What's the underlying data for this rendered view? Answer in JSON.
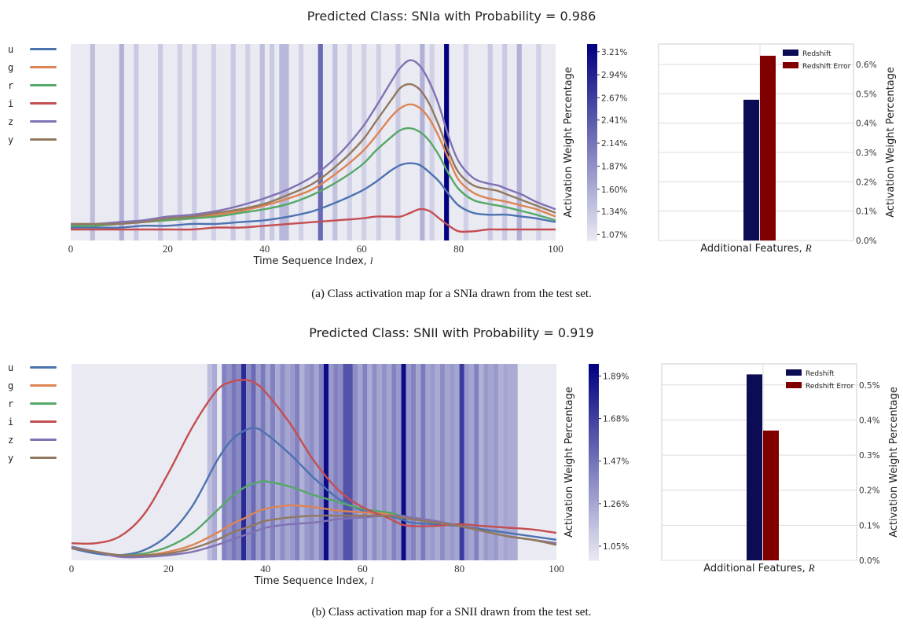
{
  "figures": [
    {
      "suptitle": "Predicted Class: SNIa with Probability = 0.986",
      "caption": "(a) Class activation map for a SNIa drawn from the test set.",
      "legend": [
        "u",
        "g",
        "r",
        "i",
        "z",
        "y"
      ],
      "colorbar_label": "Activation Weight Percentage",
      "colorbar_ticks": [
        "3.21%",
        "2.94%",
        "2.67%",
        "2.41%",
        "2.14%",
        "1.87%",
        "1.60%",
        "1.34%",
        "1.07%"
      ],
      "bar_legend": [
        "Redshift",
        "Redshift Error"
      ],
      "bar_xlabel": "Additional Features, R",
      "bar_ylabel": "Activation Weight Percentage",
      "bar_ticks": [
        "0.0%",
        "0.1%",
        "0.2%",
        "0.3%",
        "0.4%",
        "0.5%",
        "0.6%"
      ]
    },
    {
      "suptitle": "Predicted Class: SNII with Probability = 0.919",
      "caption": "(b) Class activation map for a SNII drawn from the test set.",
      "legend": [
        "u",
        "g",
        "r",
        "i",
        "z",
        "y"
      ],
      "colorbar_label": "Activation Weight Percentage",
      "colorbar_ticks": [
        "1.89%",
        "1.68%",
        "1.47%",
        "1.26%",
        "1.05%"
      ],
      "bar_legend": [
        "Redshift",
        "Redshift Error"
      ],
      "bar_xlabel": "Additional Features, R",
      "bar_ylabel": "Activation Weight Percentage",
      "bar_ticks": [
        "0.0%",
        "0.1%",
        "0.2%",
        "0.3%",
        "0.4%",
        "0.5%"
      ]
    }
  ],
  "colors": {
    "u": "#4c72b0",
    "g": "#dd8452",
    "r": "#55a868",
    "i": "#c44e52",
    "z": "#8172b3",
    "y": "#937860",
    "redshift": "#0c0c55",
    "redshift_error": "#800000",
    "cmap_max": "#000080",
    "panel_bg": "#eaeaf2"
  },
  "chart_data": [
    {
      "type": "line",
      "title": "Predicted Class: SNIa with Probability = 0.986",
      "xlabel": "Time Sequence Index, l",
      "ylabel": "",
      "xlim": [
        0,
        100
      ],
      "xticks": [
        0,
        20,
        40,
        60,
        80,
        100
      ],
      "x": [
        0,
        5,
        10,
        15,
        20,
        25,
        30,
        35,
        40,
        45,
        50,
        55,
        60,
        63,
        66,
        68,
        70,
        72,
        74,
        76,
        78,
        80,
        83,
        86,
        88,
        90,
        93,
        96,
        100
      ],
      "series": [
        {
          "name": "u",
          "values": [
            0.07,
            0.07,
            0.07,
            0.08,
            0.08,
            0.09,
            0.09,
            0.1,
            0.11,
            0.13,
            0.16,
            0.21,
            0.27,
            0.32,
            0.38,
            0.41,
            0.42,
            0.41,
            0.37,
            0.32,
            0.25,
            0.19,
            0.15,
            0.14,
            0.14,
            0.14,
            0.13,
            0.12,
            0.1
          ]
        },
        {
          "name": "g",
          "values": [
            0.08,
            0.08,
            0.09,
            0.1,
            0.11,
            0.12,
            0.14,
            0.16,
            0.19,
            0.23,
            0.28,
            0.37,
            0.48,
            0.57,
            0.67,
            0.72,
            0.74,
            0.72,
            0.66,
            0.56,
            0.44,
            0.33,
            0.26,
            0.23,
            0.22,
            0.21,
            0.19,
            0.17,
            0.13
          ]
        },
        {
          "name": "r",
          "values": [
            0.08,
            0.08,
            0.09,
            0.1,
            0.11,
            0.12,
            0.13,
            0.15,
            0.17,
            0.2,
            0.25,
            0.32,
            0.41,
            0.49,
            0.56,
            0.6,
            0.61,
            0.59,
            0.54,
            0.46,
            0.36,
            0.28,
            0.22,
            0.2,
            0.19,
            0.18,
            0.16,
            0.14,
            0.11
          ]
        },
        {
          "name": "i",
          "values": [
            0.06,
            0.06,
            0.06,
            0.06,
            0.06,
            0.06,
            0.07,
            0.07,
            0.08,
            0.09,
            0.1,
            0.11,
            0.12,
            0.13,
            0.13,
            0.13,
            0.15,
            0.17,
            0.16,
            0.12,
            0.08,
            0.05,
            0.05,
            0.06,
            0.06,
            0.06,
            0.06,
            0.06,
            0.06
          ]
        },
        {
          "name": "z",
          "values": [
            0.09,
            0.09,
            0.1,
            0.11,
            0.13,
            0.14,
            0.16,
            0.19,
            0.23,
            0.28,
            0.35,
            0.46,
            0.61,
            0.73,
            0.86,
            0.94,
            0.98,
            0.95,
            0.86,
            0.73,
            0.56,
            0.43,
            0.34,
            0.31,
            0.3,
            0.28,
            0.25,
            0.21,
            0.17
          ]
        },
        {
          "name": "y",
          "values": [
            0.09,
            0.09,
            0.09,
            0.1,
            0.12,
            0.13,
            0.15,
            0.17,
            0.2,
            0.25,
            0.31,
            0.41,
            0.54,
            0.65,
            0.76,
            0.83,
            0.85,
            0.82,
            0.74,
            0.62,
            0.48,
            0.37,
            0.3,
            0.28,
            0.27,
            0.25,
            0.22,
            0.19,
            0.15
          ]
        }
      ],
      "heat_columns": [
        {
          "x": 4,
          "w": 1,
          "v": 0.2
        },
        {
          "x": 10,
          "w": 1,
          "v": 0.25
        },
        {
          "x": 13,
          "w": 1,
          "v": 0.15
        },
        {
          "x": 18,
          "w": 1,
          "v": 0.15
        },
        {
          "x": 22,
          "w": 1,
          "v": 0.12
        },
        {
          "x": 25,
          "w": 1,
          "v": 0.14
        },
        {
          "x": 29,
          "w": 1,
          "v": 0.12
        },
        {
          "x": 33,
          "w": 1,
          "v": 0.15
        },
        {
          "x": 36,
          "w": 1,
          "v": 0.12
        },
        {
          "x": 39,
          "w": 1,
          "v": 0.2
        },
        {
          "x": 41,
          "w": 1,
          "v": 0.15
        },
        {
          "x": 43,
          "w": 2,
          "v": 0.22
        },
        {
          "x": 47,
          "w": 1,
          "v": 0.12
        },
        {
          "x": 51,
          "w": 1,
          "v": 0.55
        },
        {
          "x": 54,
          "w": 1,
          "v": 0.18
        },
        {
          "x": 57,
          "w": 1,
          "v": 0.12
        },
        {
          "x": 60,
          "w": 1,
          "v": 0.12
        },
        {
          "x": 63,
          "w": 1,
          "v": 0.12
        },
        {
          "x": 67,
          "w": 1,
          "v": 0.15
        },
        {
          "x": 72,
          "w": 1,
          "v": 0.25
        },
        {
          "x": 74,
          "w": 1,
          "v": 0.12
        },
        {
          "x": 77,
          "w": 1,
          "v": 1.0
        },
        {
          "x": 81,
          "w": 1,
          "v": 0.12
        },
        {
          "x": 86,
          "w": 1,
          "v": 0.15
        },
        {
          "x": 89,
          "w": 1,
          "v": 0.15
        },
        {
          "x": 92,
          "w": 1,
          "v": 0.25
        },
        {
          "x": 96,
          "w": 1,
          "v": 0.12
        }
      ],
      "colorbar": {
        "min": 1.0,
        "max": 3.3,
        "ticks": [
          3.21,
          2.94,
          2.67,
          2.41,
          2.14,
          1.87,
          1.6,
          1.34,
          1.07
        ]
      },
      "bars": {
        "categories": [
          "Redshift",
          "Redshift Error"
        ],
        "values": [
          0.48,
          0.63
        ],
        "ylim": [
          0,
          0.67
        ],
        "xlabel": "Additional Features, R",
        "ylabel": "Activation Weight Percentage"
      }
    },
    {
      "type": "line",
      "title": "Predicted Class: SNII with Probability = 0.919",
      "xlabel": "Time Sequence Index, l",
      "ylabel": "",
      "xlim": [
        0,
        100
      ],
      "xticks": [
        0,
        20,
        40,
        60,
        80,
        100
      ],
      "x": [
        0,
        5,
        10,
        15,
        20,
        25,
        30,
        33,
        36,
        38,
        40,
        45,
        50,
        55,
        60,
        65,
        68,
        70,
        75,
        80,
        85,
        90,
        95,
        100
      ],
      "series": [
        {
          "name": "u",
          "values": [
            0.07,
            0.04,
            0.03,
            0.06,
            0.15,
            0.32,
            0.58,
            0.7,
            0.76,
            0.77,
            0.74,
            0.62,
            0.48,
            0.36,
            0.29,
            0.26,
            0.24,
            0.22,
            0.21,
            0.2,
            0.18,
            0.16,
            0.14,
            0.12
          ]
        },
        {
          "name": "g",
          "values": [
            0.08,
            0.05,
            0.03,
            0.03,
            0.05,
            0.09,
            0.16,
            0.21,
            0.25,
            0.28,
            0.3,
            0.32,
            0.31,
            0.29,
            0.28,
            0.27,
            0.26,
            0.25,
            0.23,
            0.2,
            0.17,
            0.14,
            0.12,
            0.1
          ]
        },
        {
          "name": "r",
          "values": [
            0.08,
            0.05,
            0.03,
            0.04,
            0.08,
            0.16,
            0.29,
            0.37,
            0.43,
            0.45,
            0.46,
            0.43,
            0.38,
            0.34,
            0.3,
            0.28,
            0.26,
            0.25,
            0.23,
            0.2,
            0.17,
            0.14,
            0.12,
            0.1
          ]
        },
        {
          "name": "i",
          "values": [
            0.1,
            0.1,
            0.14,
            0.27,
            0.51,
            0.78,
            0.99,
            1.04,
            1.05,
            1.03,
            0.98,
            0.8,
            0.58,
            0.41,
            0.31,
            0.25,
            0.21,
            0.2,
            0.2,
            0.21,
            0.2,
            0.19,
            0.18,
            0.16
          ]
        },
        {
          "name": "z",
          "values": [
            0.08,
            0.05,
            0.02,
            0.02,
            0.03,
            0.05,
            0.09,
            0.12,
            0.15,
            0.17,
            0.19,
            0.21,
            0.22,
            0.24,
            0.25,
            0.26,
            0.26,
            0.25,
            0.23,
            0.2,
            0.17,
            0.14,
            0.12,
            0.1
          ]
        },
        {
          "name": "y",
          "values": [
            0.07,
            0.05,
            0.03,
            0.03,
            0.04,
            0.07,
            0.12,
            0.16,
            0.19,
            0.21,
            0.23,
            0.25,
            0.26,
            0.26,
            0.26,
            0.26,
            0.25,
            0.24,
            0.22,
            0.2,
            0.17,
            0.14,
            0.12,
            0.09
          ]
        }
      ],
      "heat_columns": [
        {
          "x": 28,
          "w": 1,
          "v": 0.2
        },
        {
          "x": 29,
          "w": 1,
          "v": 0.28
        },
        {
          "x": 31,
          "w": 1,
          "v": 0.45
        },
        {
          "x": 32,
          "w": 1,
          "v": 0.38
        },
        {
          "x": 33,
          "w": 1,
          "v": 0.5
        },
        {
          "x": 34,
          "w": 1,
          "v": 0.42
        },
        {
          "x": 35,
          "w": 1,
          "v": 0.82
        },
        {
          "x": 36,
          "w": 1,
          "v": 0.4
        },
        {
          "x": 37,
          "w": 1,
          "v": 0.55
        },
        {
          "x": 38,
          "w": 1,
          "v": 0.33
        },
        {
          "x": 39,
          "w": 1,
          "v": 0.48
        },
        {
          "x": 40,
          "w": 1,
          "v": 0.3
        },
        {
          "x": 41,
          "w": 1,
          "v": 0.45
        },
        {
          "x": 42,
          "w": 1,
          "v": 0.28
        },
        {
          "x": 43,
          "w": 1,
          "v": 0.4
        },
        {
          "x": 44,
          "w": 1,
          "v": 0.3
        },
        {
          "x": 45,
          "w": 1,
          "v": 0.35
        },
        {
          "x": 46,
          "w": 1,
          "v": 0.45
        },
        {
          "x": 47,
          "w": 1,
          "v": 0.25
        },
        {
          "x": 48,
          "w": 1,
          "v": 0.35
        },
        {
          "x": 49,
          "w": 1,
          "v": 0.4
        },
        {
          "x": 50,
          "w": 1,
          "v": 0.3
        },
        {
          "x": 51,
          "w": 1,
          "v": 0.45
        },
        {
          "x": 52,
          "w": 1,
          "v": 0.95
        },
        {
          "x": 53,
          "w": 1,
          "v": 0.35
        },
        {
          "x": 54,
          "w": 1,
          "v": 0.45
        },
        {
          "x": 55,
          "w": 1,
          "v": 0.4
        },
        {
          "x": 56,
          "w": 2,
          "v": 0.65
        },
        {
          "x": 58,
          "w": 1,
          "v": 0.4
        },
        {
          "x": 59,
          "w": 1,
          "v": 0.3
        },
        {
          "x": 60,
          "w": 1,
          "v": 0.45
        },
        {
          "x": 61,
          "w": 1,
          "v": 0.28
        },
        {
          "x": 62,
          "w": 1,
          "v": 0.4
        },
        {
          "x": 63,
          "w": 1,
          "v": 0.3
        },
        {
          "x": 64,
          "w": 1,
          "v": 0.38
        },
        {
          "x": 65,
          "w": 1,
          "v": 0.3
        },
        {
          "x": 66,
          "w": 1,
          "v": 0.45
        },
        {
          "x": 67,
          "w": 1,
          "v": 0.35
        },
        {
          "x": 68,
          "w": 1,
          "v": 0.95
        },
        {
          "x": 69,
          "w": 1,
          "v": 0.35
        },
        {
          "x": 70,
          "w": 1,
          "v": 0.45
        },
        {
          "x": 71,
          "w": 1,
          "v": 0.3
        },
        {
          "x": 72,
          "w": 1,
          "v": 0.48
        },
        {
          "x": 73,
          "w": 1,
          "v": 0.3
        },
        {
          "x": 74,
          "w": 1,
          "v": 0.35
        },
        {
          "x": 75,
          "w": 1,
          "v": 0.28
        },
        {
          "x": 76,
          "w": 1,
          "v": 0.4
        },
        {
          "x": 77,
          "w": 1,
          "v": 0.3
        },
        {
          "x": 78,
          "w": 1,
          "v": 0.35
        },
        {
          "x": 79,
          "w": 1,
          "v": 0.3
        },
        {
          "x": 80,
          "w": 1,
          "v": 0.75
        },
        {
          "x": 81,
          "w": 1,
          "v": 0.35
        },
        {
          "x": 82,
          "w": 1,
          "v": 0.3
        },
        {
          "x": 83,
          "w": 1,
          "v": 0.45
        },
        {
          "x": 84,
          "w": 1,
          "v": 0.25
        },
        {
          "x": 85,
          "w": 1,
          "v": 0.35
        },
        {
          "x": 86,
          "w": 1,
          "v": 0.3
        },
        {
          "x": 87,
          "w": 1,
          "v": 0.35
        },
        {
          "x": 88,
          "w": 1,
          "v": 0.25
        },
        {
          "x": 89,
          "w": 1,
          "v": 0.3
        },
        {
          "x": 90,
          "w": 2,
          "v": 0.28
        }
      ],
      "colorbar": {
        "min": 0.98,
        "max": 1.95,
        "ticks": [
          1.89,
          1.68,
          1.47,
          1.26,
          1.05
        ]
      },
      "bars": {
        "categories": [
          "Redshift",
          "Redshift Error"
        ],
        "values": [
          0.53,
          0.37
        ],
        "ylim": [
          0,
          0.56
        ],
        "xlabel": "Additional Features, R",
        "ylabel": "Activation Weight Percentage"
      }
    }
  ]
}
